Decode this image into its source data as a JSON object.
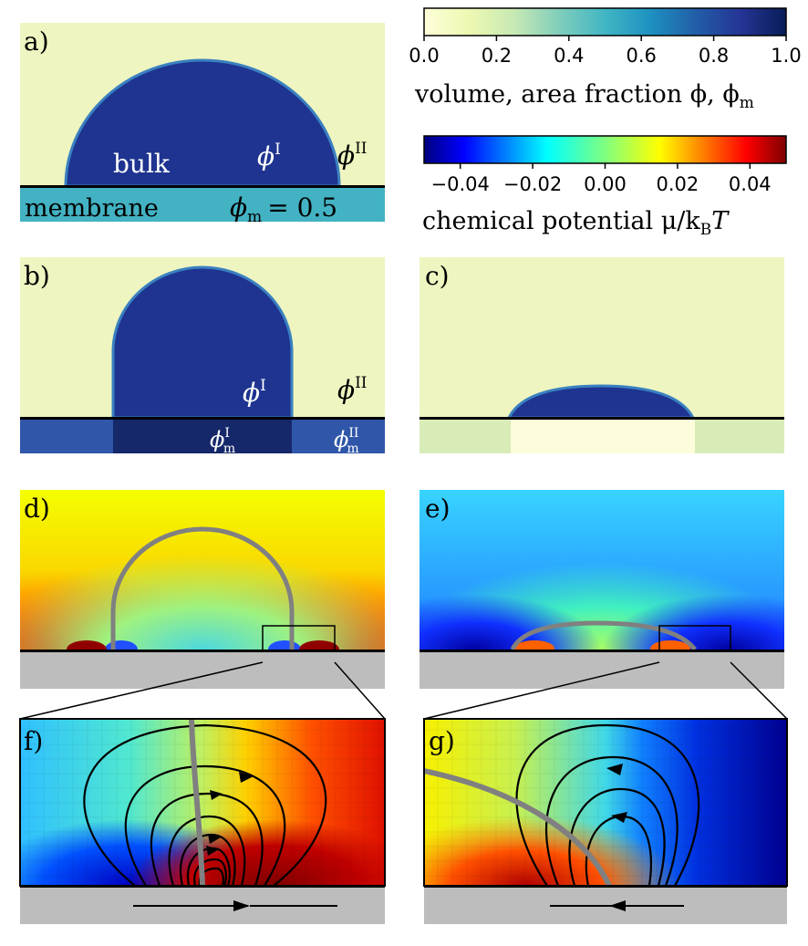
{
  "panels": {
    "a": {
      "letter": "a)",
      "bulk": "bulk",
      "phi_I": "ϕ",
      "phi_I_sup": "I",
      "phi_II": "ϕ",
      "phi_II_sup": "II",
      "membrane": "membrane",
      "phi_m_eq": "ϕ",
      "phi_m_sub": "m",
      "phi_m_val": "= 0.5"
    },
    "b": {
      "letter": "b)",
      "phi_I": "ϕ",
      "phi_I_sup": "I",
      "phi_II": "ϕ",
      "phi_II_sup": "II",
      "phi_m_I": "ϕ",
      "phi_m_I_sup": "I",
      "phi_m_I_sub": "m",
      "phi_m_II": "ϕ",
      "phi_m_II_sup": "II",
      "phi_m_II_sub": "m"
    },
    "c": {
      "letter": "c)"
    },
    "d": {
      "letter": "d)"
    },
    "e": {
      "letter": "e)"
    },
    "f": {
      "letter": "f)"
    },
    "g": {
      "letter": "g)"
    }
  },
  "colorbars": {
    "volume": {
      "ticks": [
        "0.0",
        "0.2",
        "0.4",
        "0.6",
        "0.8",
        "1.0"
      ],
      "label": "volume, area fraction ϕ, ϕ",
      "label_sub": "m",
      "colormap": "YlGnBu",
      "colors": [
        "#ffffd9",
        "#edf8b1",
        "#c7e9b4",
        "#7fcdbb",
        "#41b6c4",
        "#1d91c0",
        "#225ea8",
        "#253494",
        "#081d58"
      ]
    },
    "chem": {
      "ticks": [
        "−0.04",
        "−0.02",
        "0.00",
        "0.02",
        "0.04"
      ],
      "label": "chemical potential μ/k",
      "label_sub": "B",
      "label_tail": "T",
      "colormap": "jet",
      "colors": [
        "#00007f",
        "#0000ff",
        "#007fff",
        "#00ffff",
        "#7fff7f",
        "#ffff00",
        "#ff7f00",
        "#ff0000",
        "#7f0000"
      ]
    }
  },
  "colors": {
    "background_pale": "#eef5c0",
    "droplet": "#2b3f9c",
    "membrane_mid": "#43b2c3",
    "membrane_dark": "#1a2a70",
    "membrane_light": "#2f56a8",
    "substrate_gray": "#bdbdbd",
    "interface_gray": "#808080"
  }
}
